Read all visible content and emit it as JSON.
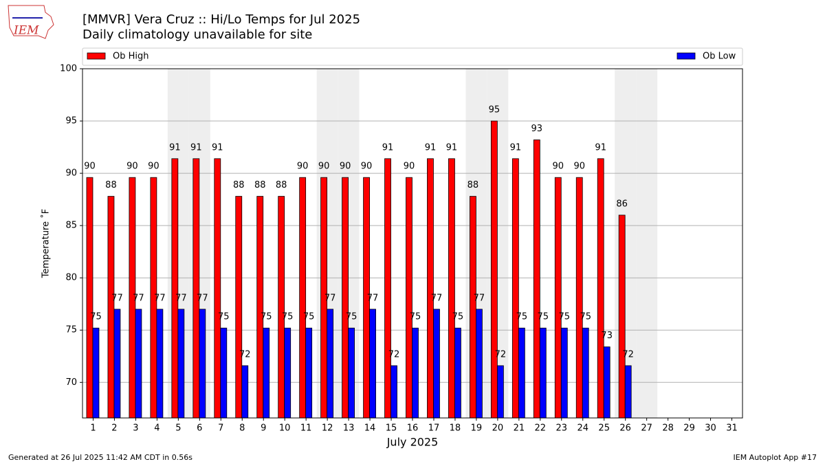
{
  "chart_data": {
    "type": "bar",
    "title": "[MMVR] Vera Cruz :: Hi/Lo Temps for Jul 2025",
    "subtitle": "Daily climatology unavailable for site",
    "x_label": "July 2025",
    "y_label": "Temperature ˚F",
    "logo_text": "IEM",
    "footer_left": "Generated at 26 Jul 2025 11:42 AM CDT in 0.56s",
    "footer_right": "IEM Autoplot App #17",
    "categories": [
      "1",
      "2",
      "3",
      "4",
      "5",
      "6",
      "7",
      "8",
      "9",
      "10",
      "11",
      "12",
      "13",
      "14",
      "15",
      "16",
      "17",
      "18",
      "19",
      "20",
      "21",
      "22",
      "23",
      "24",
      "25",
      "26",
      "27",
      "28",
      "29",
      "30",
      "31"
    ],
    "shaded_categories": [
      "5",
      "6",
      "12",
      "13",
      "19",
      "20",
      "26",
      "27"
    ],
    "shade_color": "#eeeeee",
    "series": [
      {
        "name": "Ob High",
        "color": "#ff0000",
        "values": [
          89.6,
          87.8,
          89.6,
          89.6,
          91.4,
          91.4,
          91.4,
          87.8,
          87.8,
          87.8,
          89.6,
          89.6,
          89.6,
          89.6,
          91.4,
          89.6,
          91.4,
          91.4,
          87.8,
          95,
          91.4,
          93.2,
          89.6,
          89.6,
          91.4,
          86,
          null,
          null,
          null,
          null,
          null
        ],
        "value_labels": [
          "90",
          "88",
          "90",
          "90",
          "91",
          "91",
          "91",
          "88",
          "88",
          "88",
          "90",
          "90",
          "90",
          "90",
          "91",
          "90",
          "91",
          "91",
          "88",
          "95",
          "91",
          "93",
          "90",
          "90",
          "91",
          "86",
          null,
          null,
          null,
          null,
          null
        ]
      },
      {
        "name": "Ob Low",
        "color": "#0000ff",
        "values": [
          75.2,
          77,
          77,
          77,
          77,
          77,
          75.2,
          71.6,
          75.2,
          75.2,
          75.2,
          77,
          75.2,
          77,
          71.6,
          75.2,
          77,
          75.2,
          77,
          71.6,
          75.2,
          75.2,
          75.2,
          75.2,
          73.4,
          71.6,
          null,
          null,
          null,
          null,
          null
        ],
        "value_labels": [
          "75",
          "77",
          "77",
          "77",
          "77",
          "77",
          "75",
          "72",
          "75",
          "75",
          "75",
          "77",
          "75",
          "77",
          "72",
          "75",
          "77",
          "75",
          "77",
          "72",
          "75",
          "75",
          "75",
          "75",
          "73",
          "72",
          null,
          null,
          null,
          null,
          null
        ]
      }
    ],
    "ylim": [
      66.6,
      100
    ],
    "yticks": [
      70,
      75,
      80,
      85,
      90,
      95,
      100
    ],
    "grid": true
  }
}
